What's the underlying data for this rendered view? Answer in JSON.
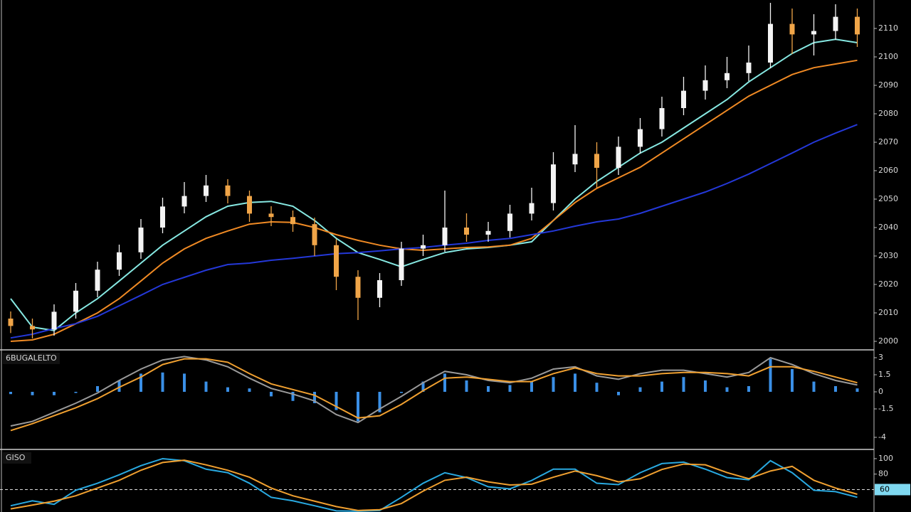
{
  "chart_data": [
    {
      "type": "candlestick",
      "categories": [
        null,
        null,
        null,
        null,
        null,
        null,
        null,
        null,
        null,
        null,
        null,
        null,
        null,
        null,
        null,
        null,
        null,
        null,
        null,
        null,
        null,
        null,
        null,
        null,
        null,
        null,
        null,
        null,
        null,
        null,
        null,
        null,
        null,
        null,
        null,
        null,
        null,
        null,
        null,
        null
      ],
      "open": [
        2008.0,
        2005.4,
        2004.2,
        2010.4,
        2017.8,
        2025.2,
        2031.3,
        2040.0,
        2047.4,
        2051.1,
        2054.8,
        2051.1,
        2044.9,
        2043.7,
        2041.2,
        2033.8,
        2022.7,
        2015.3,
        2021.5,
        2032.6,
        2033.8,
        2040.0,
        2037.5,
        2038.8,
        2044.9,
        2048.6,
        2062.2,
        2065.9,
        2061.0,
        2068.4,
        2074.6,
        2082.0,
        2088.1,
        2091.8,
        2094.3,
        2098.0,
        2111.6,
        2107.9,
        2109.1,
        2114.1
      ],
      "high": [
        2010.5,
        2008.0,
        2013.0,
        2020.5,
        2028.0,
        2034.0,
        2043.0,
        2050.5,
        2056.0,
        2058.5,
        2057.0,
        2053.0,
        2047.5,
        2046.0,
        2043.5,
        2036.0,
        2025.0,
        2024.0,
        2035.0,
        2037.5,
        2053.0,
        2045.0,
        2042.0,
        2048.0,
        2054.0,
        2066.5,
        2076.0,
        2070.0,
        2072.0,
        2078.5,
        2086.0,
        2093.0,
        2097.0,
        2100.0,
        2104.0,
        2119.0,
        2117.0,
        2115.0,
        2118.5,
        2117.0
      ],
      "low": [
        2002.9,
        2001.0,
        2002.0,
        2008.0,
        2015.5,
        2023.0,
        2029.0,
        2038.0,
        2045.0,
        2049.0,
        2048.5,
        2042.0,
        2040.5,
        2038.5,
        2030.0,
        2018.0,
        2007.5,
        2012.0,
        2019.5,
        2030.0,
        2031.5,
        2035.0,
        2035.0,
        2036.5,
        2042.5,
        2046.0,
        2059.5,
        2054.0,
        2058.5,
        2066.0,
        2072.0,
        2079.5,
        2085.0,
        2089.0,
        2091.5,
        2096.0,
        2101.0,
        2100.5,
        2106.0,
        2103.5
      ],
      "close": [
        2005.4,
        2004.2,
        2010.4,
        2017.8,
        2025.2,
        2031.3,
        2040.0,
        2047.4,
        2051.1,
        2054.8,
        2051.1,
        2044.9,
        2043.7,
        2041.2,
        2033.8,
        2022.7,
        2015.3,
        2021.5,
        2032.6,
        2033.8,
        2040.0,
        2037.5,
        2038.8,
        2044.9,
        2048.6,
        2062.2,
        2065.9,
        2061.0,
        2068.4,
        2074.6,
        2082.0,
        2088.1,
        2091.8,
        2094.3,
        2098.0,
        2111.6,
        2107.9,
        2109.1,
        2114.1,
        2107.9
      ],
      "up_color": "#f4f4f4",
      "down_color": "#f0a548",
      "series": [
        {
          "color": "#86e8e2",
          "values": [
            2015,
            2005,
            2003.8,
            2010,
            2015,
            2021.2,
            2027.5,
            2033.8,
            2038.8,
            2043.8,
            2047.5,
            2048.8,
            2049.2,
            2047.5,
            2042.5,
            2036.2,
            2031.2,
            2028.8,
            2026.2,
            2028.8,
            2031.2,
            2032.5,
            2033,
            2033.8,
            2035,
            2042.5,
            2050,
            2056.2,
            2061.2,
            2066.2,
            2070,
            2075,
            2080,
            2085,
            2091.2,
            2096.2,
            2101.2,
            2105,
            2106.2,
            2105
          ]
        },
        {
          "color": "#f08a24",
          "values": [
            2000,
            2000.5,
            2002.5,
            2006.2,
            2010,
            2015,
            2021.2,
            2027.5,
            2032.5,
            2036.2,
            2038.8,
            2041.2,
            2042,
            2041.8,
            2040,
            2037.5,
            2035.5,
            2033.8,
            2032.5,
            2032,
            2032.5,
            2033,
            2033.2,
            2033.8,
            2036.2,
            2042.5,
            2048.8,
            2053.8,
            2057.5,
            2061.2,
            2066.2,
            2071.2,
            2076.2,
            2081.2,
            2086.2,
            2090,
            2093.8,
            2096.2,
            2097.5,
            2098.8
          ]
        },
        {
          "color": "#2438d8",
          "values": [
            2001.2,
            2002.5,
            2004.5,
            2006.2,
            2008.8,
            2012.5,
            2016.2,
            2020,
            2022.5,
            2025,
            2027,
            2027.5,
            2028.5,
            2029.2,
            2030,
            2030.8,
            2031.2,
            2031.8,
            2032.5,
            2033,
            2033.8,
            2034.5,
            2035.5,
            2036.2,
            2037.5,
            2038.8,
            2040.5,
            2042,
            2043,
            2045,
            2047.5,
            2050,
            2052.5,
            2055.5,
            2058.8,
            2062.5,
            2066.2,
            2070,
            2073.2,
            2076.2
          ]
        }
      ],
      "ylim": [
        1997.5,
        2120
      ],
      "yticks": [
        2110,
        2100,
        2090,
        2080,
        2070,
        2060,
        2050,
        2040,
        2030,
        2020,
        2010,
        2000
      ]
    },
    {
      "type": "macd",
      "title": "6BUGALELTO",
      "values": [
        -0.2,
        -0.3,
        -0.3,
        -0.1,
        0.5,
        1.0,
        1.6,
        1.7,
        1.6,
        0.9,
        0.4,
        0.3,
        -0.4,
        -0.8,
        -1.0,
        -1.6,
        -2.6,
        -1.8,
        -0.1,
        0.9,
        1.6,
        1.0,
        0.5,
        0.6,
        0.9,
        1.3,
        1.6,
        0.8,
        -0.3,
        0.4,
        0.9,
        1.3,
        1.0,
        0.4,
        0.5,
        2.9,
        2.0,
        0.9,
        0.5,
        0.3
      ],
      "color": "#3a8fe6",
      "series": [
        {
          "color": "#9a9a9a",
          "values": [
            -3.0,
            -2.6,
            -1.8,
            -1.0,
            -0.1,
            1.0,
            2.0,
            2.8,
            3.1,
            2.8,
            2.2,
            1.2,
            0.3,
            -0.2,
            -0.8,
            -2.0,
            -2.7,
            -1.5,
            -0.4,
            0.8,
            1.8,
            1.5,
            1.0,
            0.8,
            1.2,
            2.0,
            2.2,
            1.4,
            1.1,
            1.6,
            1.9,
            1.9,
            1.6,
            1.3,
            1.7,
            3.0,
            2.4,
            1.6,
            1.0,
            0.6
          ]
        },
        {
          "color": "#f0a030",
          "values": [
            -3.4,
            -2.8,
            -2.1,
            -1.4,
            -0.6,
            0.4,
            1.3,
            2.4,
            2.9,
            2.9,
            2.6,
            1.6,
            0.7,
            0.2,
            -0.3,
            -1.3,
            -2.3,
            -2.1,
            -1.1,
            0.1,
            1.2,
            1.3,
            1.1,
            0.9,
            0.9,
            1.6,
            2.1,
            1.6,
            1.4,
            1.4,
            1.6,
            1.7,
            1.7,
            1.6,
            1.4,
            2.2,
            2.2,
            1.8,
            1.3,
            0.8
          ]
        }
      ],
      "ylim": [
        -5,
        3.5
      ],
      "yticks": [
        3,
        1.5,
        0,
        -1.5,
        -4
      ]
    },
    {
      "type": "stochastic",
      "title": "GISO",
      "series": [
        {
          "color": "#29a9e0",
          "values": [
            39.1,
            45.5,
            40.9,
            59.1,
            68.2,
            79.1,
            90.9,
            100,
            97.3,
            86.4,
            81.8,
            68.2,
            50,
            45.5,
            39.1,
            32.5,
            32,
            33,
            50,
            68.2,
            81.8,
            75.5,
            63.6,
            60.9,
            71.8,
            86.4,
            86.4,
            68.2,
            66.4,
            81.8,
            93.6,
            95.5,
            86.4,
            75.5,
            72.7,
            97.3,
            81.8,
            59.1,
            57.3,
            50
          ]
        },
        {
          "color": "#f0a030",
          "values": [
            35,
            40,
            45,
            52,
            62,
            72,
            85,
            95,
            98,
            92,
            85,
            76,
            62,
            52,
            45,
            38,
            33,
            34,
            42,
            58,
            72,
            76,
            70,
            66,
            67,
            76,
            84,
            78,
            70,
            74,
            86,
            93,
            92,
            82,
            74,
            84,
            90,
            72,
            62,
            54
          ]
        }
      ],
      "level": 60,
      "ylim": [
        31,
        111
      ],
      "yticks": [
        100,
        80
      ]
    }
  ]
}
